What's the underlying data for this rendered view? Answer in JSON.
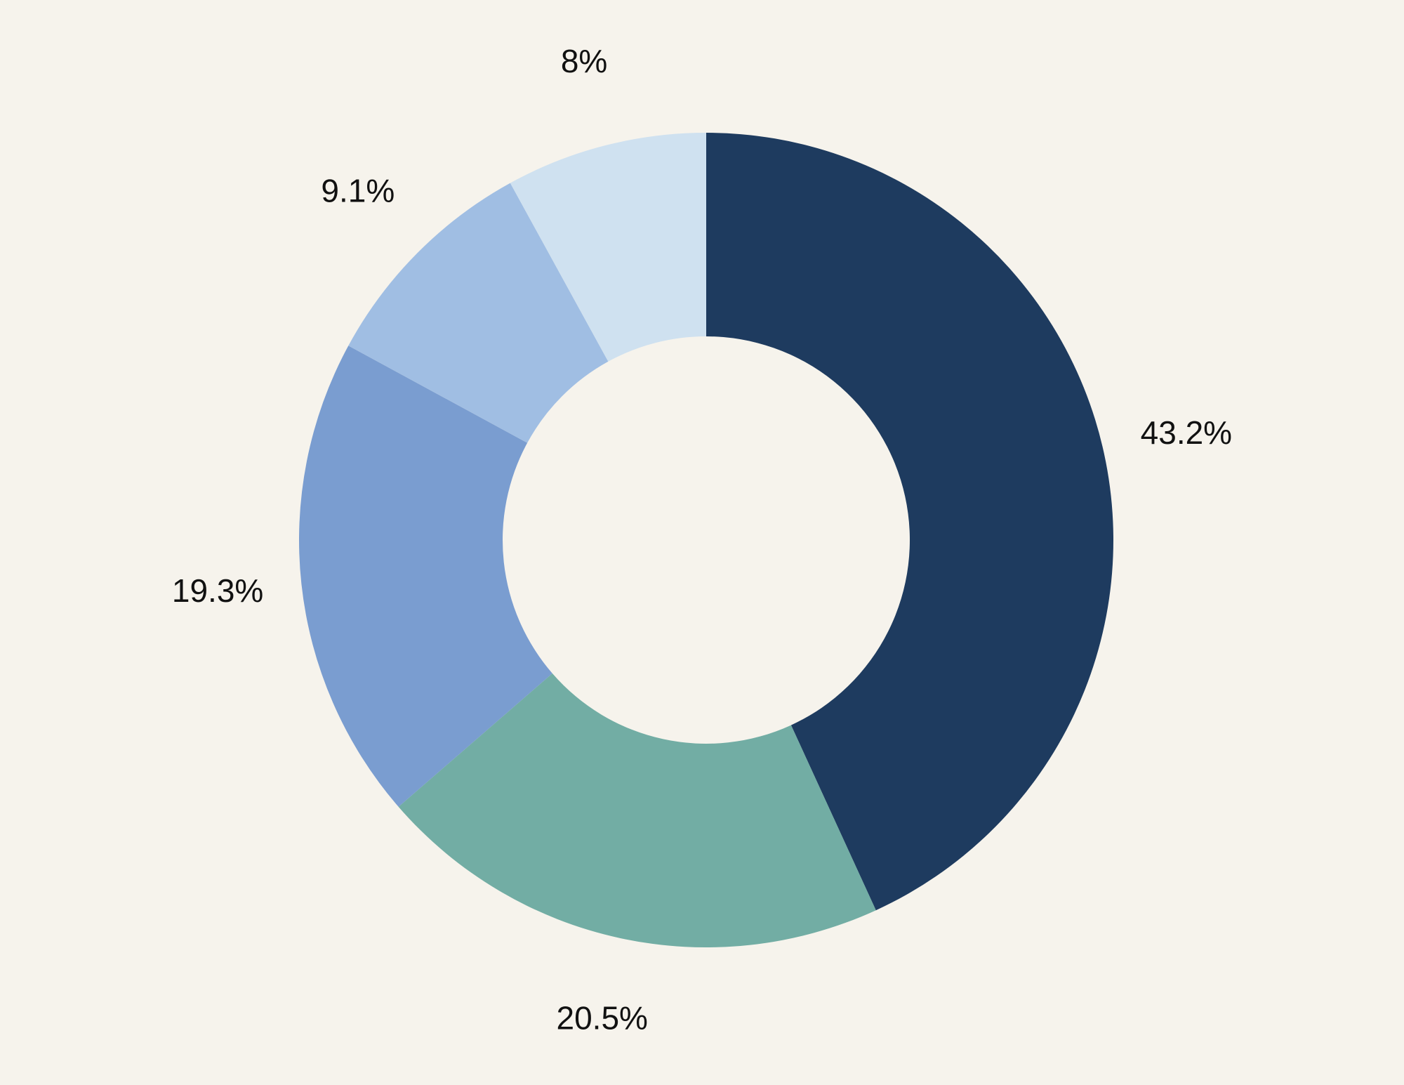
{
  "chart_data": {
    "type": "pie",
    "variant": "donut",
    "title": "",
    "slices": [
      {
        "value": 43.2,
        "label": "43.2%",
        "color": "#1e3b5f"
      },
      {
        "value": 20.5,
        "label": "20.5%",
        "color": "#72ada4"
      },
      {
        "value": 19.3,
        "label": "19.3%",
        "color": "#7a9dd0"
      },
      {
        "value": 9.1,
        "label": "9.1%",
        "color": "#a0bee3"
      },
      {
        "value": 8.0,
        "label": "8%",
        "color": "#cfe1f0"
      }
    ],
    "start_angle": "12 o'clock",
    "direction": "clockwise",
    "legend": "none",
    "grid": false
  }
}
